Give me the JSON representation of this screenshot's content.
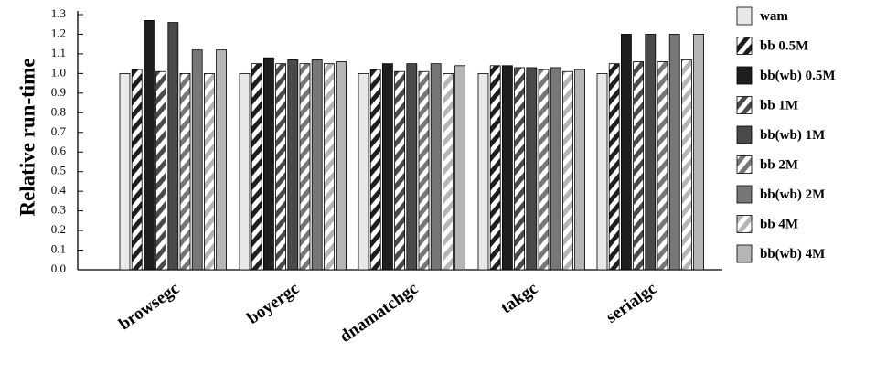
{
  "chart_data": {
    "type": "bar",
    "title": "",
    "xlabel": "",
    "ylabel": "Relative run-time",
    "ylim": [
      0,
      1.3
    ],
    "yticks": [
      "0.0",
      "0.1",
      "0.2",
      "0.3",
      "0.4",
      "0.5",
      "0.6",
      "0.7",
      "0.8",
      "0.9",
      "1.0",
      "1.1",
      "1.2",
      "1.3"
    ],
    "grid": false,
    "legend_position": "right",
    "categories": [
      "browsegc",
      "boyergc",
      "dnamatchgc",
      "takgc",
      "serialgc"
    ],
    "series": [
      {
        "name": "wam",
        "values": [
          1.0,
          1.0,
          1.0,
          1.0,
          1.0
        ],
        "color": "#e8e8e8",
        "pattern": "solid"
      },
      {
        "name": "bb 0.5M",
        "values": [
          1.02,
          1.05,
          1.02,
          1.04,
          1.05
        ],
        "color": "#1e1e1e",
        "pattern": "hatch"
      },
      {
        "name": "bb(wb) 0.5M",
        "values": [
          1.27,
          1.08,
          1.05,
          1.04,
          1.2
        ],
        "color": "#1e1e1e",
        "pattern": "solid"
      },
      {
        "name": "bb 1M",
        "values": [
          1.01,
          1.05,
          1.01,
          1.03,
          1.06
        ],
        "color": "#4a4a4a",
        "pattern": "hatch"
      },
      {
        "name": "bb(wb) 1M",
        "values": [
          1.26,
          1.07,
          1.05,
          1.03,
          1.2
        ],
        "color": "#4a4a4a",
        "pattern": "solid"
      },
      {
        "name": "bb 2M",
        "values": [
          1.0,
          1.05,
          1.01,
          1.02,
          1.06
        ],
        "color": "#777777",
        "pattern": "hatch"
      },
      {
        "name": "bb(wb) 2M",
        "values": [
          1.12,
          1.07,
          1.05,
          1.03,
          1.2
        ],
        "color": "#777777",
        "pattern": "solid"
      },
      {
        "name": "bb 4M",
        "values": [
          1.0,
          1.05,
          1.0,
          1.01,
          1.07
        ],
        "color": "#b5b5b5",
        "pattern": "hatch"
      },
      {
        "name": "bb(wb) 4M",
        "values": [
          1.12,
          1.06,
          1.04,
          1.02,
          1.2
        ],
        "color": "#b5b5b5",
        "pattern": "solid"
      }
    ]
  }
}
